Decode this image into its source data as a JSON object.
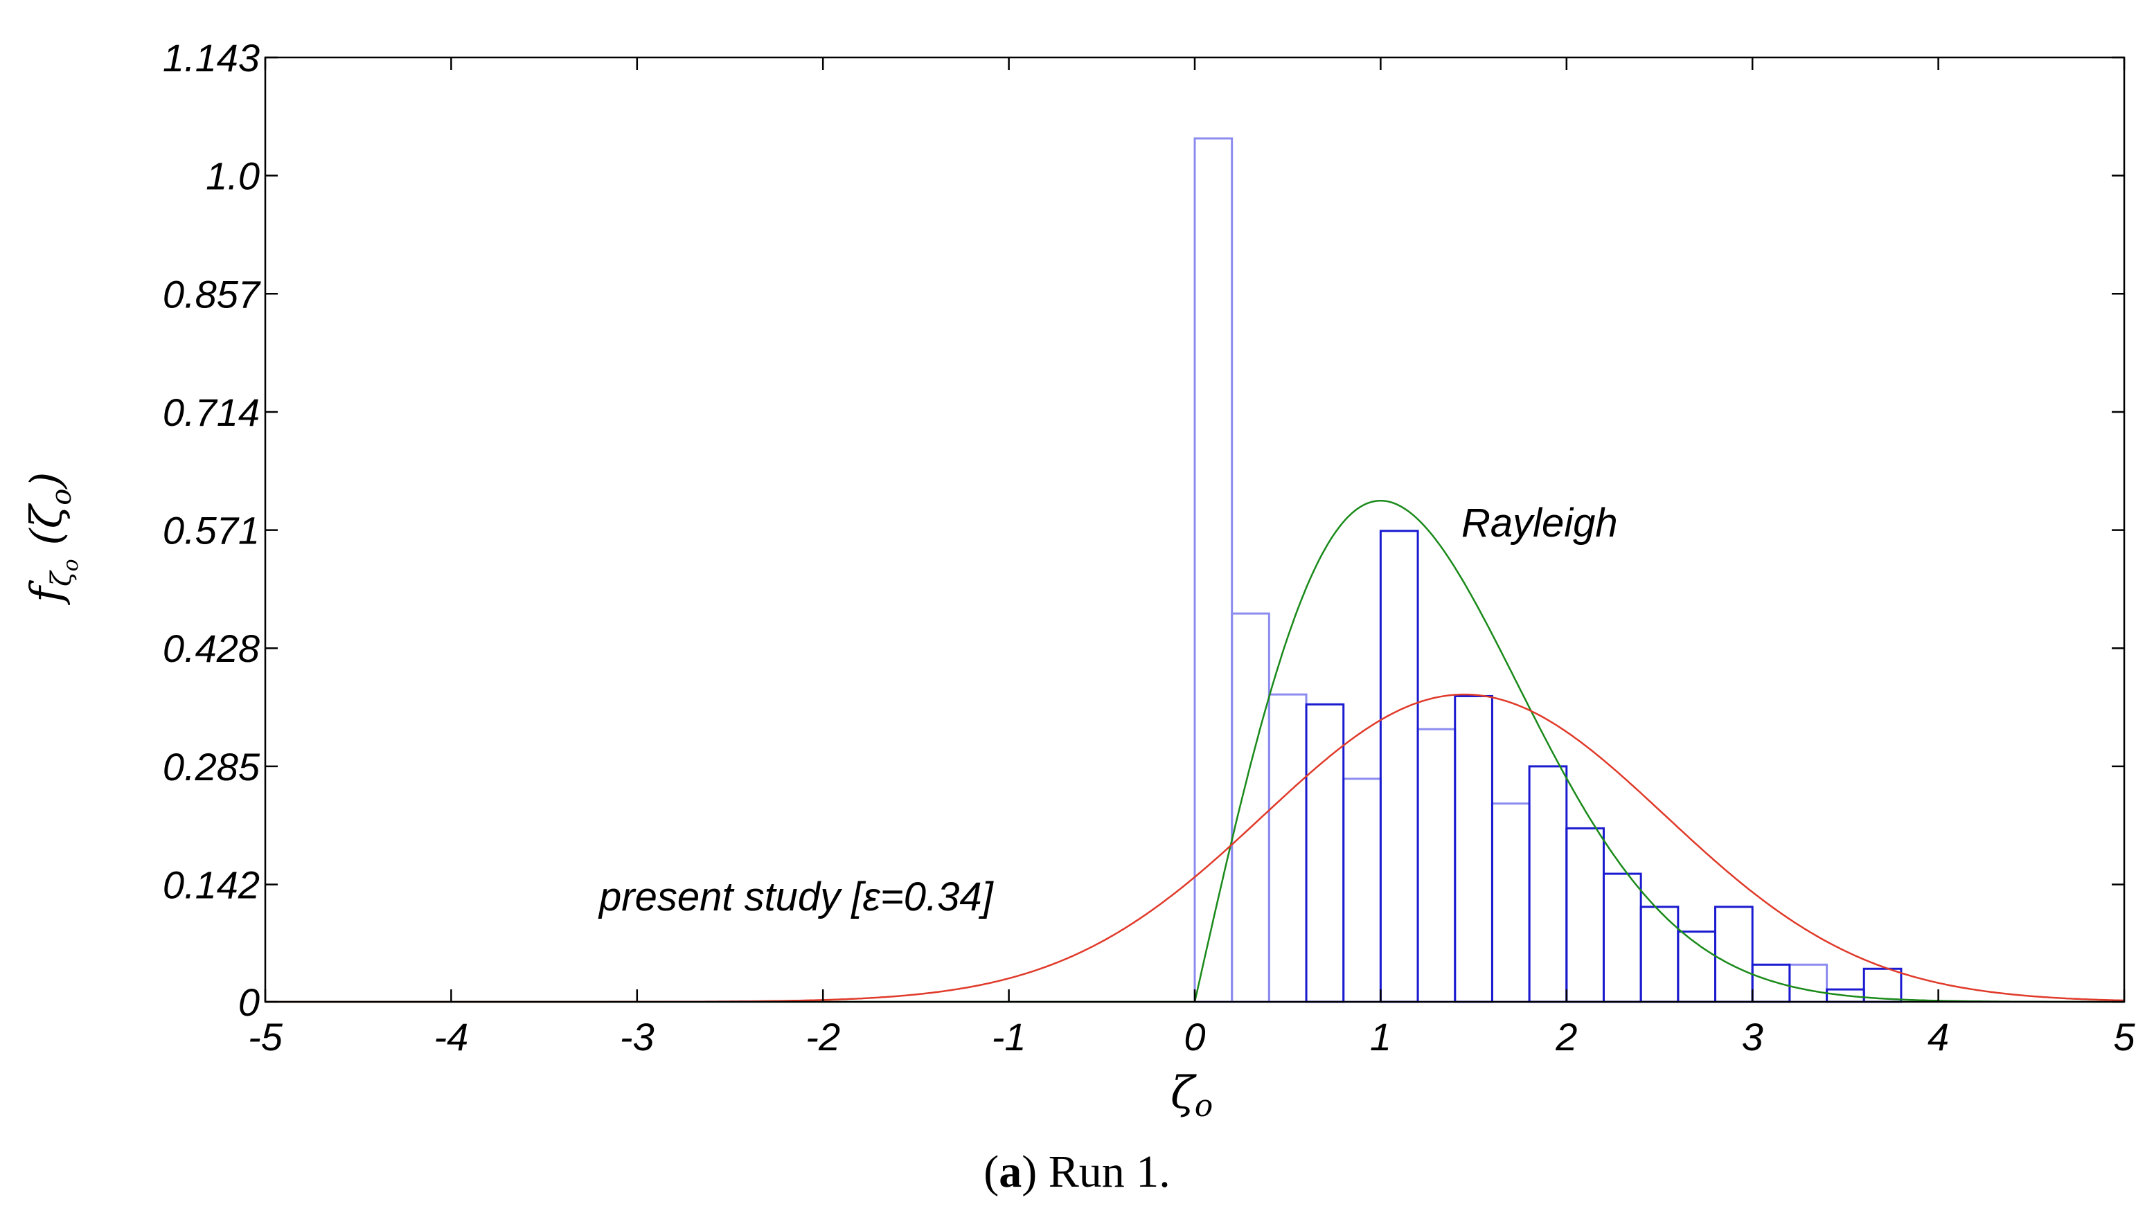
{
  "chart_data": {
    "type": "bar",
    "xlabel": "ζo",
    "ylabel": "fζo(ζo)",
    "xlim": [
      -5,
      5
    ],
    "ylim": [
      0,
      1.143
    ],
    "xticks": [
      "-5",
      "-4",
      "-3",
      "-2",
      "-1",
      "0",
      "1",
      "2",
      "3",
      "4",
      "5"
    ],
    "yticks": [
      "0",
      "0.142",
      "0.285",
      "0.428",
      "0.571",
      "0.714",
      "0.857",
      "1.0",
      "1.143"
    ],
    "grid": false,
    "histograms": [
      {
        "color": "#8c8cf0",
        "bin_width": 0.2,
        "bins": [
          {
            "x0": 0.0,
            "value": 1.045
          },
          {
            "x0": 0.2,
            "value": 0.47
          },
          {
            "x0": 0.4,
            "value": 0.372
          },
          {
            "x0": 0.8,
            "value": 0.27
          },
          {
            "x0": 1.2,
            "value": 0.33
          },
          {
            "x0": 1.6,
            "value": 0.24
          },
          {
            "x0": 3.2,
            "value": 0.045
          }
        ]
      },
      {
        "color": "#1a1ad0",
        "bin_width": 0.2,
        "bins": [
          {
            "x0": 0.6,
            "value": 0.36
          },
          {
            "x0": 1.0,
            "value": 0.57
          },
          {
            "x0": 1.4,
            "value": 0.37
          },
          {
            "x0": 1.8,
            "value": 0.285
          },
          {
            "x0": 2.0,
            "value": 0.21
          },
          {
            "x0": 2.2,
            "value": 0.155
          },
          {
            "x0": 2.4,
            "value": 0.115
          },
          {
            "x0": 2.6,
            "value": 0.085
          },
          {
            "x0": 2.8,
            "value": 0.115
          },
          {
            "x0": 3.0,
            "value": 0.045
          },
          {
            "x0": 3.4,
            "value": 0.015
          },
          {
            "x0": 3.6,
            "value": 0.04
          }
        ]
      }
    ],
    "curves": [
      {
        "label": "Rayleigh",
        "color": "#1a8a1a",
        "kind": "rayleigh",
        "sigma": 1.0
      },
      {
        "label": "present study [ε=0.34]",
        "color": "#e03a2a",
        "kind": "gaussian",
        "mean": 1.45,
        "sd": 1.08,
        "peak": 0.372
      }
    ]
  },
  "caption": {
    "letter": "a",
    "text": "Run 1."
  }
}
